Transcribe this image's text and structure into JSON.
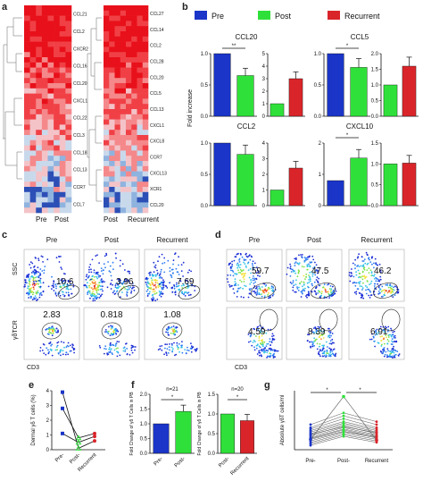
{
  "panel_letters": {
    "a": "a",
    "b": "b",
    "c": "c",
    "d": "d",
    "e": "e",
    "f": "f",
    "g": "g"
  },
  "colors": {
    "pre": "#1a35c8",
    "post": "#30e03a",
    "recurrent": "#d9252a"
  },
  "heatmap_left": {
    "genes": [
      "CCL21",
      "CCL2",
      "CXCR2",
      "CCL16",
      "CCL20",
      "CXCL1",
      "CCL22",
      "CCL3",
      "CCL18",
      "CCL13",
      "CCR7",
      "CCL7"
    ],
    "columns": [
      "Pre",
      "Post"
    ]
  },
  "heatmap_right": {
    "genes": [
      "CCL27",
      "CCL14",
      "CCL2",
      "CCL28",
      "CCL20",
      "CCL5",
      "CCL13",
      "CXCL1",
      "CXCL8",
      "CCR7",
      "CXCL13",
      "XCR1",
      "CCL20"
    ],
    "columns": [
      "Post",
      "Recurrent"
    ]
  },
  "legend": [
    {
      "label": "Pre",
      "color": "#1a35c8"
    },
    {
      "label": "Post",
      "color": "#30e03a"
    },
    {
      "label": "Recurrent",
      "color": "#d9252a"
    }
  ],
  "b_ylabel": "Fold increase",
  "chart_data": [
    {
      "type": "bar",
      "title": "CCL20",
      "categories": [
        "Pre",
        "Post"
      ],
      "values": [
        1.0,
        0.65
      ],
      "ylim": [
        0,
        1.0
      ],
      "yticks": [
        "0.0",
        "0.5",
        "1.0"
      ],
      "sig": "**"
    },
    {
      "type": "bar",
      "categories": [
        "Post",
        "Recurrent"
      ],
      "values": [
        1.0,
        3.0
      ],
      "ylim": [
        0,
        5
      ],
      "yticks": [
        "0",
        "1",
        "2",
        "3",
        "4",
        "5"
      ]
    },
    {
      "type": "bar",
      "title": "CCL5",
      "categories": [
        "Pre",
        "Post"
      ],
      "values": [
        1.0,
        0.78
      ],
      "ylim": [
        0,
        1.0
      ],
      "yticks": [
        "0.0",
        "0.5",
        "1.0"
      ],
      "sig": "*"
    },
    {
      "type": "bar",
      "categories": [
        "Post",
        "Recurrent"
      ],
      "values": [
        1.0,
        1.6
      ],
      "ylim": [
        0,
        2.0
      ],
      "yticks": [
        "0.0",
        "0.5",
        "1.0",
        "1.5",
        "2.0"
      ]
    },
    {
      "type": "bar",
      "title": "CCL2",
      "categories": [
        "Pre",
        "Post"
      ],
      "values": [
        1.0,
        0.82
      ],
      "ylim": [
        0,
        1.0
      ],
      "yticks": [
        "0.0",
        "0.5",
        "1.0"
      ]
    },
    {
      "type": "bar",
      "categories": [
        "Post",
        "Recurrent"
      ],
      "values": [
        1.0,
        2.4
      ],
      "ylim": [
        0,
        4
      ],
      "yticks": [
        "0",
        "1",
        "2",
        "3",
        "4"
      ]
    },
    {
      "type": "bar",
      "title": "CXCL10",
      "categories": [
        "Pre",
        "Post"
      ],
      "values": [
        1.0,
        1.9
      ],
      "ylim": [
        0,
        2.5
      ],
      "yticks": [
        "0",
        "1",
        "2"
      ],
      "sig": "*"
    },
    {
      "type": "bar",
      "categories": [
        "Post",
        "Recurrent"
      ],
      "values": [
        1.0,
        1.02
      ],
      "ylim": [
        0,
        1.5
      ],
      "yticks": [
        "0.0",
        "0.5",
        "1.0",
        "1.5"
      ]
    }
  ],
  "flow_c": {
    "headers": [
      "Pre",
      "Post",
      "Recurrent"
    ],
    "ssc_label": "SSC",
    "tcr_label": "γδTCR",
    "x_label": "CD3",
    "top_values": [
      "10.6",
      "3.96",
      "7.69"
    ],
    "bottom_values": [
      "2.83",
      "0.818",
      "1.08"
    ]
  },
  "flow_d": {
    "headers": [
      "Pre",
      "Post",
      "Recurrent"
    ],
    "x_label": "CD3",
    "top_values": [
      "59.7",
      "47.5",
      "46.2"
    ],
    "bottom_values": [
      "4.59",
      "8.39",
      "6.91"
    ]
  },
  "panel_e": {
    "ylabel": "Dermal γδ T cells (%)",
    "categories": [
      "Pre-",
      "Post-",
      "Recurrent"
    ],
    "yticks": [
      "0",
      "1",
      "2",
      "3",
      "4"
    ],
    "series": [
      [
        2.8,
        0.8,
        1.1
      ],
      [
        3.9,
        0.1,
        0.6
      ],
      [
        1.1,
        0.5,
        0.9
      ]
    ]
  },
  "panel_f1": {
    "ylabel": "Fold Change of γδ T Cells in PB",
    "n": "n=21",
    "sig": "*",
    "categories": [
      "Pre-",
      "Post-"
    ],
    "values": [
      1.0,
      1.42
    ],
    "yticks": [
      "0.0",
      "0.5",
      "1.0",
      "1.5",
      "2.0"
    ]
  },
  "panel_f2": {
    "ylabel": "Fold Change of γδ T Cells in PB",
    "n": "n=20",
    "sig": "*",
    "categories": [
      "Post-",
      "Recurrent"
    ],
    "values": [
      1.0,
      0.83
    ],
    "yticks": [
      "0.0",
      "0.5",
      "1.0",
      "1.5"
    ]
  },
  "panel_g": {
    "ylabel": "Absolute γδT cells/ml",
    "categories": [
      "Pre-",
      "Post-",
      "Recurrent"
    ],
    "sig_left": "*",
    "sig_right": "*",
    "highlight": [
      3.5,
      18.0,
      3.2
    ],
    "lines": [
      [
        1.5,
        4.5,
        2.5
      ],
      [
        2.0,
        5.0,
        3.0
      ],
      [
        2.5,
        5.5,
        3.5
      ],
      [
        3.0,
        6.0,
        4.0
      ],
      [
        3.5,
        6.2,
        4.4
      ],
      [
        4.0,
        7.0,
        4.7
      ],
      [
        4.5,
        7.5,
        5.0
      ],
      [
        5.0,
        8.0,
        5.5
      ],
      [
        5.5,
        8.5,
        6.0
      ],
      [
        6.0,
        9.0,
        6.5
      ],
      [
        6.5,
        9.5,
        7.0
      ],
      [
        7.0,
        10.5,
        7.5
      ],
      [
        7.5,
        11.5,
        8.5
      ],
      [
        8.5,
        12.5,
        9.5
      ],
      [
        3.8,
        6.7,
        4.2
      ],
      [
        5.2,
        7.8,
        5.8
      ]
    ]
  }
}
